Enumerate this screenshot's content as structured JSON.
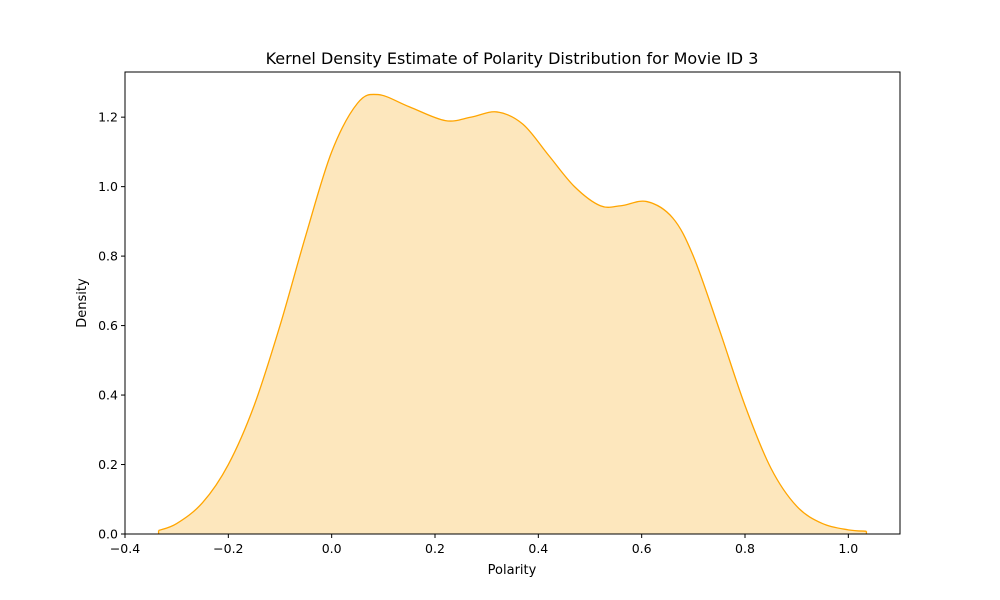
{
  "chart_data": {
    "type": "area",
    "title": "Kernel Density Estimate of Polarity Distribution for Movie ID 3",
    "xlabel": "Polarity",
    "ylabel": "Density",
    "xlim": [
      -0.4,
      1.1
    ],
    "ylim": [
      0,
      1.33
    ],
    "grid": false,
    "x_ticks": [
      -0.4,
      -0.2,
      0.0,
      0.2,
      0.4,
      0.6,
      0.8,
      1.0
    ],
    "x_tick_labels": [
      "−0.4",
      "−0.2",
      "0.0",
      "0.2",
      "0.4",
      "0.6",
      "0.8",
      "1.0"
    ],
    "y_ticks": [
      0.0,
      0.2,
      0.4,
      0.6,
      0.8,
      1.0,
      1.2
    ],
    "y_tick_labels": [
      "0.0",
      "0.2",
      "0.4",
      "0.6",
      "0.8",
      "1.0",
      "1.2"
    ],
    "colors": {
      "line": "#ffa500",
      "fill": "#fde7bd"
    },
    "series": [
      {
        "x": [
          -0.335,
          -0.3,
          -0.25,
          -0.2,
          -0.15,
          -0.1,
          -0.05,
          0.0,
          0.05,
          0.09,
          0.15,
          0.22,
          0.27,
          0.32,
          0.37,
          0.42,
          0.47,
          0.52,
          0.56,
          0.61,
          0.66,
          0.7,
          0.75,
          0.8,
          0.85,
          0.9,
          0.95,
          1.0,
          1.035
        ],
        "y": [
          0.01,
          0.03,
          0.09,
          0.2,
          0.37,
          0.6,
          0.86,
          1.1,
          1.24,
          1.265,
          1.23,
          1.19,
          1.2,
          1.215,
          1.18,
          1.09,
          1.0,
          0.945,
          0.945,
          0.957,
          0.91,
          0.8,
          0.59,
          0.37,
          0.19,
          0.08,
          0.03,
          0.012,
          0.008
        ]
      }
    ]
  }
}
